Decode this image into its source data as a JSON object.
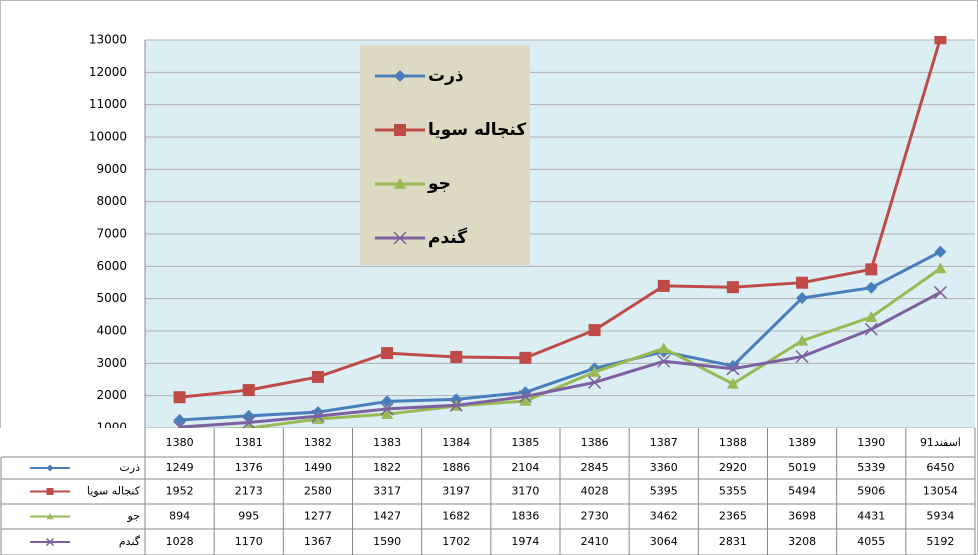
{
  "chart_data": {
    "type": "line",
    "categories": [
      "1380",
      "1381",
      "1382",
      "1383",
      "1384",
      "1385",
      "1386",
      "1387",
      "1388",
      "1389",
      "1390",
      "91اسفند"
    ],
    "series": [
      {
        "name": "ذرت",
        "color": "#4a7ebb",
        "marker": "diamond",
        "values": [
          1249,
          1376,
          1490,
          1822,
          1886,
          2104,
          2845,
          3360,
          2920,
          5019,
          5339,
          6450
        ]
      },
      {
        "name": "کنجاله سویا",
        "color": "#be4b48",
        "marker": "square",
        "values": [
          1952,
          2173,
          2580,
          3317,
          3197,
          3170,
          4028,
          5395,
          5355,
          5494,
          5906,
          13054
        ]
      },
      {
        "name": "جو",
        "color": "#98b954",
        "marker": "triangle",
        "values": [
          894,
          995,
          1277,
          1427,
          1682,
          1836,
          2730,
          3462,
          2365,
          3698,
          4431,
          5934
        ]
      },
      {
        "name": "گندم",
        "color": "#7d60a0",
        "marker": "x",
        "values": [
          1028,
          1170,
          1367,
          1590,
          1702,
          1974,
          2410,
          3064,
          2831,
          3208,
          4055,
          5192
        ]
      }
    ],
    "ylim": [
      1000,
      13000
    ],
    "yticks": [
      1000,
      2000,
      3000,
      4000,
      5000,
      6000,
      7000,
      8000,
      9000,
      10000,
      11000,
      12000,
      13000
    ],
    "grid": true,
    "legend": "top"
  }
}
